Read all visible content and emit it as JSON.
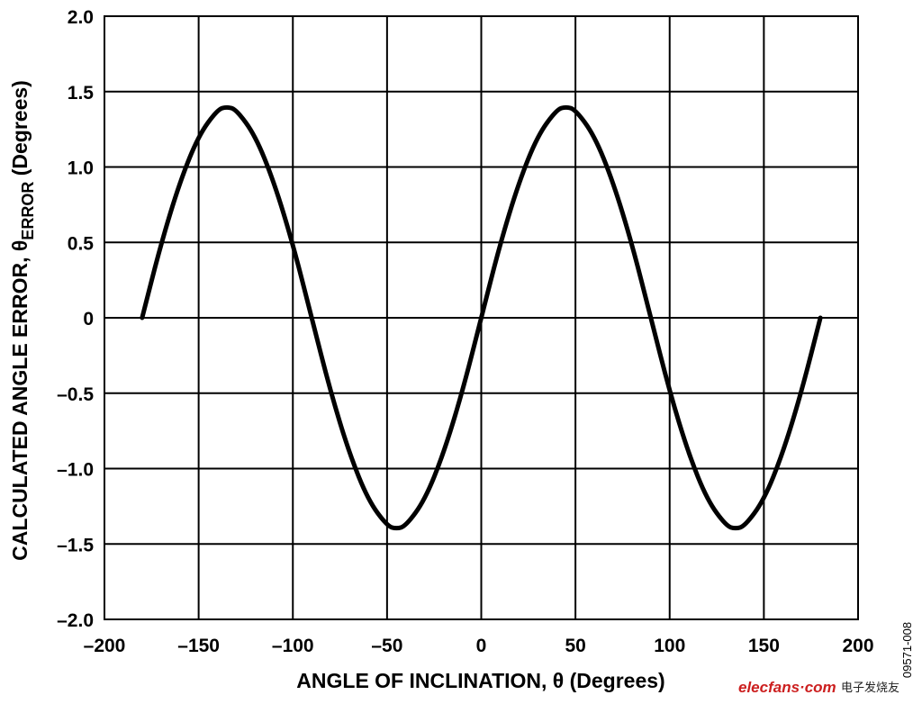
{
  "chart_data": {
    "type": "line",
    "title": "",
    "xlabel": "ANGLE OF INCLINATION, θ (Degrees)",
    "ylabel": {
      "main": "CALCULATED ANGLE ERROR, θ",
      "subscript": "ERROR",
      "suffix": " (Degrees)"
    },
    "xlim": [
      -200,
      200
    ],
    "ylim": [
      -2.0,
      2.0
    ],
    "x_ticks": [
      -200,
      -150,
      -100,
      -50,
      0,
      50,
      100,
      150,
      200
    ],
    "x_tick_labels": [
      "–200",
      "–150",
      "–100",
      "–50",
      "0",
      "50",
      "100",
      "150",
      "200"
    ],
    "y_ticks": [
      2.0,
      1.5,
      1.0,
      0.5,
      0,
      -0.5,
      -1.0,
      -1.5,
      -2.0
    ],
    "y_tick_labels": [
      "2.0",
      "1.5",
      "1.0",
      "0.5",
      "0",
      "–0.5",
      "–1.0",
      "–1.5",
      "–2.0"
    ],
    "grid": true,
    "series": [
      {
        "x": [
          -180,
          -170,
          -160,
          -150,
          -140,
          -135,
          -130,
          -120,
          -110,
          -100,
          -90,
          -80,
          -70,
          -60,
          -50,
          -45,
          -40,
          -30,
          -20,
          -10,
          0,
          10,
          20,
          30,
          40,
          45,
          50,
          60,
          70,
          80,
          90,
          100,
          110,
          120,
          130,
          135,
          140,
          150,
          160,
          170,
          180
        ],
        "y": [
          0,
          0.49,
          0.9,
          1.21,
          1.38,
          1.4,
          1.38,
          1.21,
          0.9,
          0.49,
          0,
          -0.49,
          -0.9,
          -1.21,
          -1.38,
          -1.4,
          -1.38,
          -1.21,
          -0.9,
          -0.49,
          0,
          0.49,
          0.9,
          1.21,
          1.38,
          1.4,
          1.38,
          1.21,
          0.9,
          0.49,
          0,
          -0.49,
          -0.9,
          -1.21,
          -1.38,
          -1.4,
          -1.38,
          -1.21,
          -0.9,
          -0.49,
          0
        ],
        "color": "#000000"
      }
    ]
  },
  "figure_id": "09571-008",
  "watermark": {
    "brand": "elecfans·com",
    "chinese": "电子发烧友"
  }
}
